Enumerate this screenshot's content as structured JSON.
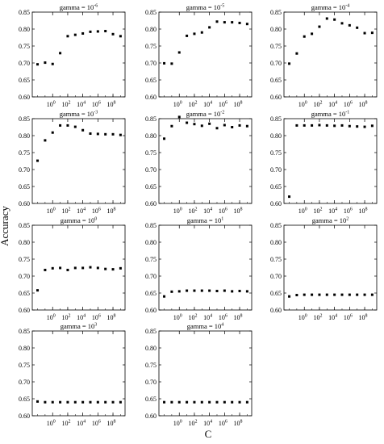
{
  "figure": {
    "ylabel": "Accuracy",
    "xlabel": "C"
  },
  "chart_data": [
    {
      "type": "scatter",
      "title_prefix": "gamma = 10",
      "title_exp": "-6",
      "x_exp": [
        -2,
        -1,
        0,
        1,
        2,
        3,
        4,
        5,
        6,
        7,
        8,
        9
      ],
      "values": [
        0.696,
        0.701,
        0.697,
        0.729,
        0.779,
        0.783,
        0.787,
        0.792,
        0.793,
        0.794,
        0.785,
        0.779
      ],
      "ylim": [
        0.6,
        0.85
      ],
      "yticks": [
        "0.60",
        "0.65",
        "0.70",
        "0.75",
        "0.80",
        "0.85"
      ],
      "xticks_exp": [
        "0",
        "2",
        "4",
        "6",
        "8"
      ]
    },
    {
      "type": "scatter",
      "title_prefix": "gamma = 10",
      "title_exp": "-5",
      "x_exp": [
        -2,
        -1,
        0,
        1,
        2,
        3,
        4,
        5,
        6,
        7,
        8,
        9
      ],
      "values": [
        0.699,
        0.698,
        0.731,
        0.78,
        0.786,
        0.79,
        0.805,
        0.822,
        0.82,
        0.82,
        0.818,
        0.815
      ],
      "ylim": [
        0.6,
        0.85
      ],
      "yticks": [
        "0.60",
        "0.65",
        "0.70",
        "0.75",
        "0.80",
        "0.85"
      ],
      "xticks_exp": [
        "0",
        "2",
        "4",
        "6",
        "8"
      ]
    },
    {
      "type": "scatter",
      "title_prefix": "gamma = 10",
      "title_exp": "-4",
      "x_exp": [
        -2,
        -1,
        0,
        1,
        2,
        3,
        4,
        5,
        6,
        7,
        8,
        9
      ],
      "values": [
        0.698,
        0.728,
        0.778,
        0.786,
        0.807,
        0.831,
        0.828,
        0.817,
        0.811,
        0.804,
        0.788,
        0.789
      ],
      "ylim": [
        0.6,
        0.85
      ],
      "yticks": [
        "0.60",
        "0.65",
        "0.70",
        "0.75",
        "0.80",
        "0.85"
      ],
      "xticks_exp": [
        "0",
        "2",
        "4",
        "6",
        "8"
      ]
    },
    {
      "type": "scatter",
      "title_prefix": "gamma = 10",
      "title_exp": "-3",
      "x_exp": [
        -2,
        -1,
        0,
        1,
        2,
        3,
        4,
        5,
        6,
        7,
        8,
        9
      ],
      "values": [
        0.726,
        0.786,
        0.809,
        0.83,
        0.83,
        0.826,
        0.816,
        0.806,
        0.805,
        0.804,
        0.804,
        0.802
      ],
      "ylim": [
        0.6,
        0.85
      ],
      "yticks": [
        "0.60",
        "0.65",
        "0.70",
        "0.75",
        "0.80",
        "0.85"
      ],
      "xticks_exp": [
        "0",
        "2",
        "4",
        "6",
        "8"
      ]
    },
    {
      "type": "scatter",
      "title_prefix": "gamma = 10",
      "title_exp": "-2",
      "x_exp": [
        -2,
        -1,
        0,
        1,
        2,
        3,
        4,
        5,
        6,
        7,
        8,
        9
      ],
      "values": [
        0.791,
        0.828,
        0.855,
        0.838,
        0.834,
        0.829,
        0.835,
        0.822,
        0.831,
        0.825,
        0.83,
        0.828
      ],
      "ylim": [
        0.6,
        0.85
      ],
      "yticks": [
        "0.60",
        "0.65",
        "0.70",
        "0.75",
        "0.80",
        "0.85"
      ],
      "xticks_exp": [
        "0",
        "2",
        "4",
        "6",
        "8"
      ]
    },
    {
      "type": "scatter",
      "title_prefix": "gamma = 10",
      "title_exp": "-1",
      "x_exp": [
        -2,
        -1,
        0,
        1,
        2,
        3,
        4,
        5,
        6,
        7,
        8,
        9
      ],
      "values": [
        0.62,
        0.83,
        0.83,
        0.83,
        0.831,
        0.83,
        0.829,
        0.83,
        0.828,
        0.827,
        0.826,
        0.829
      ],
      "ylim": [
        0.6,
        0.85
      ],
      "yticks": [
        "0.60",
        "0.65",
        "0.70",
        "0.75",
        "0.80",
        "0.85"
      ],
      "xticks_exp": [
        "0",
        "2",
        "4",
        "6",
        "8"
      ]
    },
    {
      "type": "scatter",
      "title_prefix": "gamma = 10",
      "title_exp": "0",
      "x_exp": [
        -2,
        -1,
        0,
        1,
        2,
        3,
        4,
        5,
        6,
        7,
        8,
        9
      ],
      "values": [
        0.658,
        0.718,
        0.723,
        0.724,
        0.718,
        0.724,
        0.724,
        0.726,
        0.724,
        0.721,
        0.72,
        0.723
      ],
      "ylim": [
        0.6,
        0.85
      ],
      "yticks": [
        "0.60",
        "0.65",
        "0.70",
        "0.75",
        "0.80",
        "0.85"
      ],
      "xticks_exp": [
        "0",
        "2",
        "4",
        "6",
        "8"
      ]
    },
    {
      "type": "scatter",
      "title_prefix": "gamma = 10",
      "title_exp": "1",
      "x_exp": [
        -2,
        -1,
        0,
        1,
        2,
        3,
        4,
        5,
        6,
        7,
        8,
        9
      ],
      "values": [
        0.64,
        0.654,
        0.655,
        0.657,
        0.657,
        0.657,
        0.657,
        0.656,
        0.657,
        0.655,
        0.656,
        0.655
      ],
      "ylim": [
        0.6,
        0.85
      ],
      "yticks": [
        "0.60",
        "0.65",
        "0.70",
        "0.75",
        "0.80",
        "0.85"
      ],
      "xticks_exp": [
        "0",
        "2",
        "4",
        "6",
        "8"
      ]
    },
    {
      "type": "scatter",
      "title_prefix": "gamma = 10",
      "title_exp": "2",
      "x_exp": [
        -2,
        -1,
        0,
        1,
        2,
        3,
        4,
        5,
        6,
        7,
        8,
        9
      ],
      "values": [
        0.64,
        0.644,
        0.645,
        0.645,
        0.645,
        0.645,
        0.645,
        0.645,
        0.645,
        0.645,
        0.645,
        0.645
      ],
      "ylim": [
        0.6,
        0.85
      ],
      "yticks": [
        "0.60",
        "0.65",
        "0.70",
        "0.75",
        "0.80",
        "0.85"
      ],
      "xticks_exp": [
        "0",
        "2",
        "4",
        "6",
        "8"
      ]
    },
    {
      "type": "scatter",
      "title_prefix": "gamma = 10",
      "title_exp": "3",
      "x_exp": [
        -2,
        -1,
        0,
        1,
        2,
        3,
        4,
        5,
        6,
        7,
        8,
        9
      ],
      "values": [
        0.642,
        0.64,
        0.64,
        0.64,
        0.64,
        0.64,
        0.64,
        0.64,
        0.64,
        0.64,
        0.64,
        0.64
      ],
      "ylim": [
        0.6,
        0.85
      ],
      "yticks": [
        "0.60",
        "0.65",
        "0.70",
        "0.75",
        "0.80",
        "0.85"
      ],
      "xticks_exp": [
        "0",
        "2",
        "4",
        "6",
        "8"
      ]
    },
    {
      "type": "scatter",
      "title_prefix": "gamma = 10",
      "title_exp": "4",
      "x_exp": [
        -2,
        -1,
        0,
        1,
        2,
        3,
        4,
        5,
        6,
        7,
        8,
        9
      ],
      "values": [
        0.64,
        0.64,
        0.64,
        0.64,
        0.64,
        0.64,
        0.64,
        0.64,
        0.64,
        0.64,
        0.64,
        0.64
      ],
      "ylim": [
        0.6,
        0.85
      ],
      "yticks": [
        "0.60",
        "0.65",
        "0.70",
        "0.75",
        "0.80",
        "0.85"
      ],
      "xticks_exp": [
        "0",
        "2",
        "4",
        "6",
        "8"
      ]
    }
  ]
}
